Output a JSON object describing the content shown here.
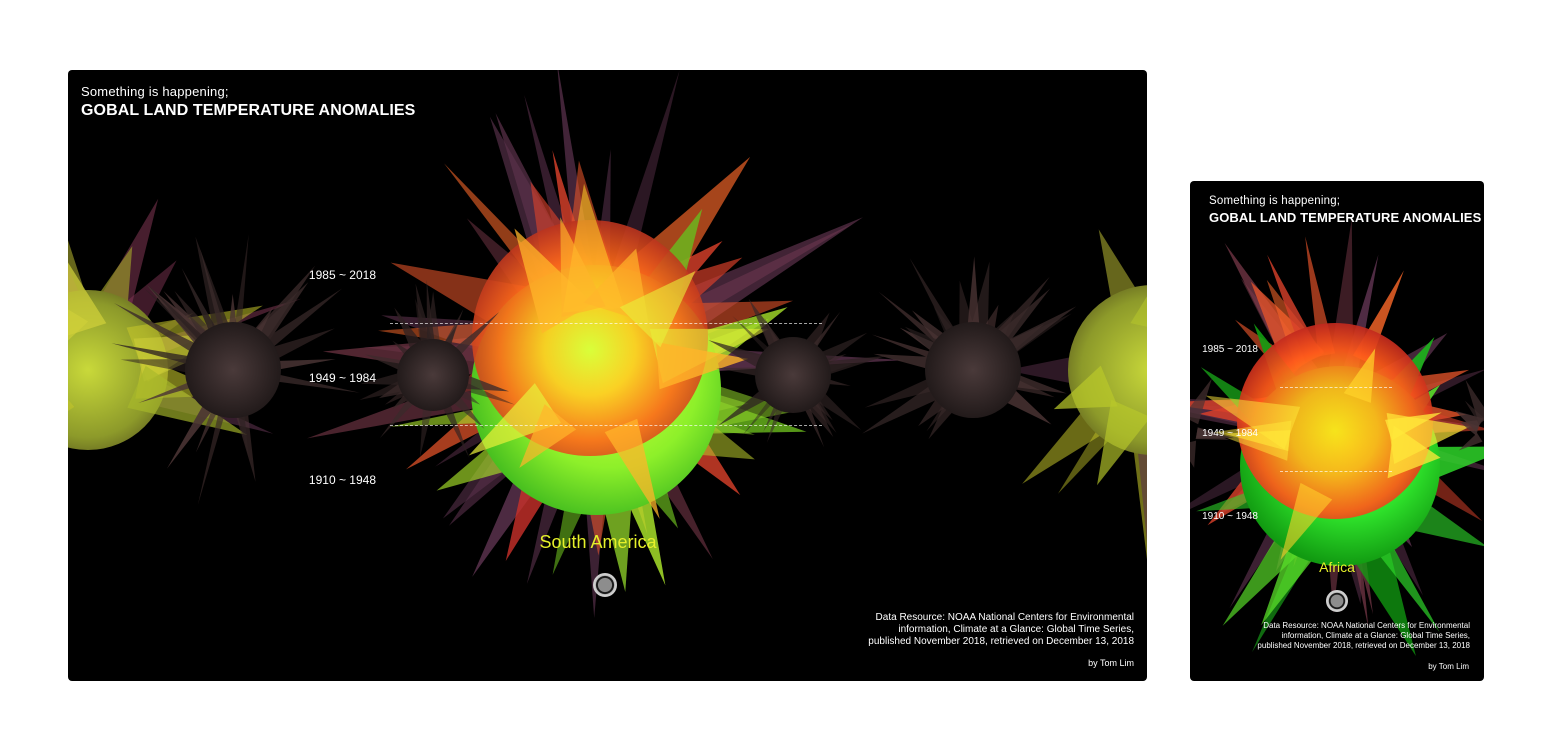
{
  "desktop": {
    "subtitle": "Something is happening;",
    "title": "GOBAL LAND TEMPERATURE ANOMALIES",
    "eras": [
      "1985 ~ 2018",
      "1949 ~ 1984",
      "1910 ~ 1948"
    ],
    "region": "South America",
    "source_lines": [
      "Data Resource: NOAA National Centers for Environmental",
      "information, Climate at a Glance: Global Time Series,",
      "published November 2018, retrieved on December 13, 2018"
    ],
    "byline": "by Tom Lim"
  },
  "mobile": {
    "subtitle": "Something is happening;",
    "title": "GOBAL LAND TEMPERATURE ANOMALIES",
    "eras": [
      "1985 ~ 2018",
      "1949 ~ 1984",
      "1910 ~ 1948"
    ],
    "region": "Africa",
    "source_lines": [
      "Data Resource: NOAA National Centers for Environmental",
      "information, Climate at a Glance: Global Time Series,",
      "published November 2018, retrieved on December 13, 2018"
    ],
    "byline": "by Tom Lim"
  },
  "colors": {
    "background": "#000000",
    "region_label": "#e6f02a",
    "hot": "#ff2a1a",
    "warm": "#ffb21a",
    "mild": "#d4ff3a",
    "cool": "#1bd81b"
  }
}
